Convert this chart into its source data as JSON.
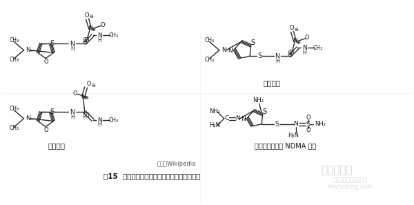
{
  "bg_color": "#ffffff",
  "fig_width": 6.0,
  "fig_height": 2.97,
  "dpi": 100,
  "caption_text": "图15  雷尼替丁、尼扎替丁、法莫替丁的结构图",
  "source_text": "来源：Wikipedia",
  "label_ranitidine_E": "",
  "label_ranitidine": "雷尼替丁",
  "label_nizatidine": "尼扎替丁",
  "label_famotidine": "法莫替丁：没有 NDMA 问题",
  "font_color": "#1a1a1a",
  "lc": "#333333",
  "lw": 1.0
}
